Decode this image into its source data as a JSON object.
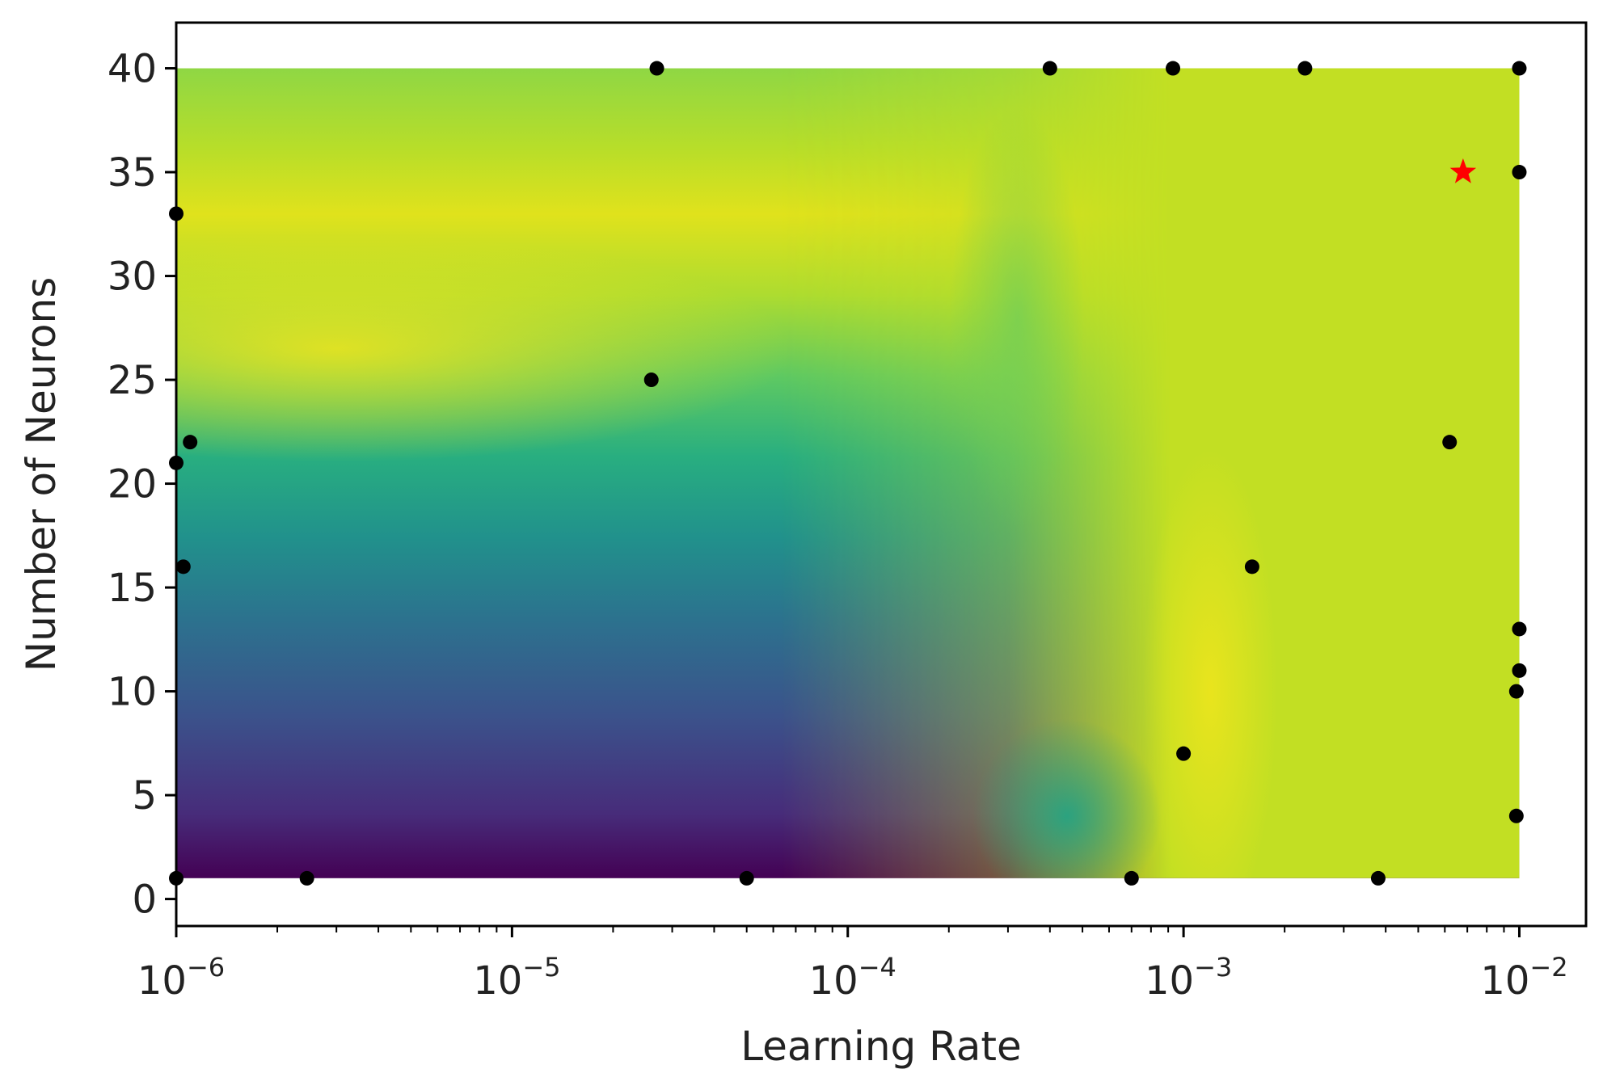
{
  "chart_data": {
    "type": "scatter",
    "subtype": "contour-surface-with-sample-points",
    "title": "",
    "xlabel": "Learning Rate",
    "ylabel": "Number of Neurons",
    "x_scale": "log",
    "xlim": [
      1e-06,
      0.0158
    ],
    "ylim": [
      -1.3,
      42.2
    ],
    "surface_range": {
      "x": [
        1e-06,
        0.01
      ],
      "y": [
        1,
        40
      ]
    },
    "x_ticks": [
      {
        "base": "10",
        "exp": "−6",
        "value": 1e-06
      },
      {
        "base": "10",
        "exp": "−5",
        "value": 1e-05
      },
      {
        "base": "10",
        "exp": "−4",
        "value": 0.0001
      },
      {
        "base": "10",
        "exp": "−3",
        "value": 0.001
      },
      {
        "base": "10",
        "exp": "−2",
        "value": 0.01
      }
    ],
    "y_ticks": [
      "0",
      "5",
      "10",
      "15",
      "20",
      "25",
      "30",
      "35",
      "40"
    ],
    "colormap": "viridis",
    "grid": false,
    "legend": "none",
    "points": [
      {
        "x": 2.7e-05,
        "y": 40
      },
      {
        "x": 0.0004,
        "y": 40
      },
      {
        "x": 0.00093,
        "y": 40
      },
      {
        "x": 0.0023,
        "y": 40
      },
      {
        "x": 0.01,
        "y": 40
      },
      {
        "x": 0.01,
        "y": 35
      },
      {
        "x": 1e-06,
        "y": 33
      },
      {
        "x": 2.6e-05,
        "y": 25
      },
      {
        "x": 1.1e-06,
        "y": 22
      },
      {
        "x": 1e-06,
        "y": 21
      },
      {
        "x": 0.0062,
        "y": 22
      },
      {
        "x": 1.05e-06,
        "y": 16
      },
      {
        "x": 0.0016,
        "y": 16
      },
      {
        "x": 0.01,
        "y": 13
      },
      {
        "x": 0.01,
        "y": 11
      },
      {
        "x": 0.0098,
        "y": 10
      },
      {
        "x": 0.001,
        "y": 7
      },
      {
        "x": 0.0098,
        "y": 4
      },
      {
        "x": 1e-06,
        "y": 1
      },
      {
        "x": 2.45e-06,
        "y": 1
      },
      {
        "x": 5e-05,
        "y": 1
      },
      {
        "x": 0.0007,
        "y": 1
      },
      {
        "x": 0.0038,
        "y": 1
      }
    ],
    "best_point": {
      "x": 0.0068,
      "y": 35,
      "marker": "star",
      "color": "#ff0000"
    },
    "point_color": "#000000"
  }
}
